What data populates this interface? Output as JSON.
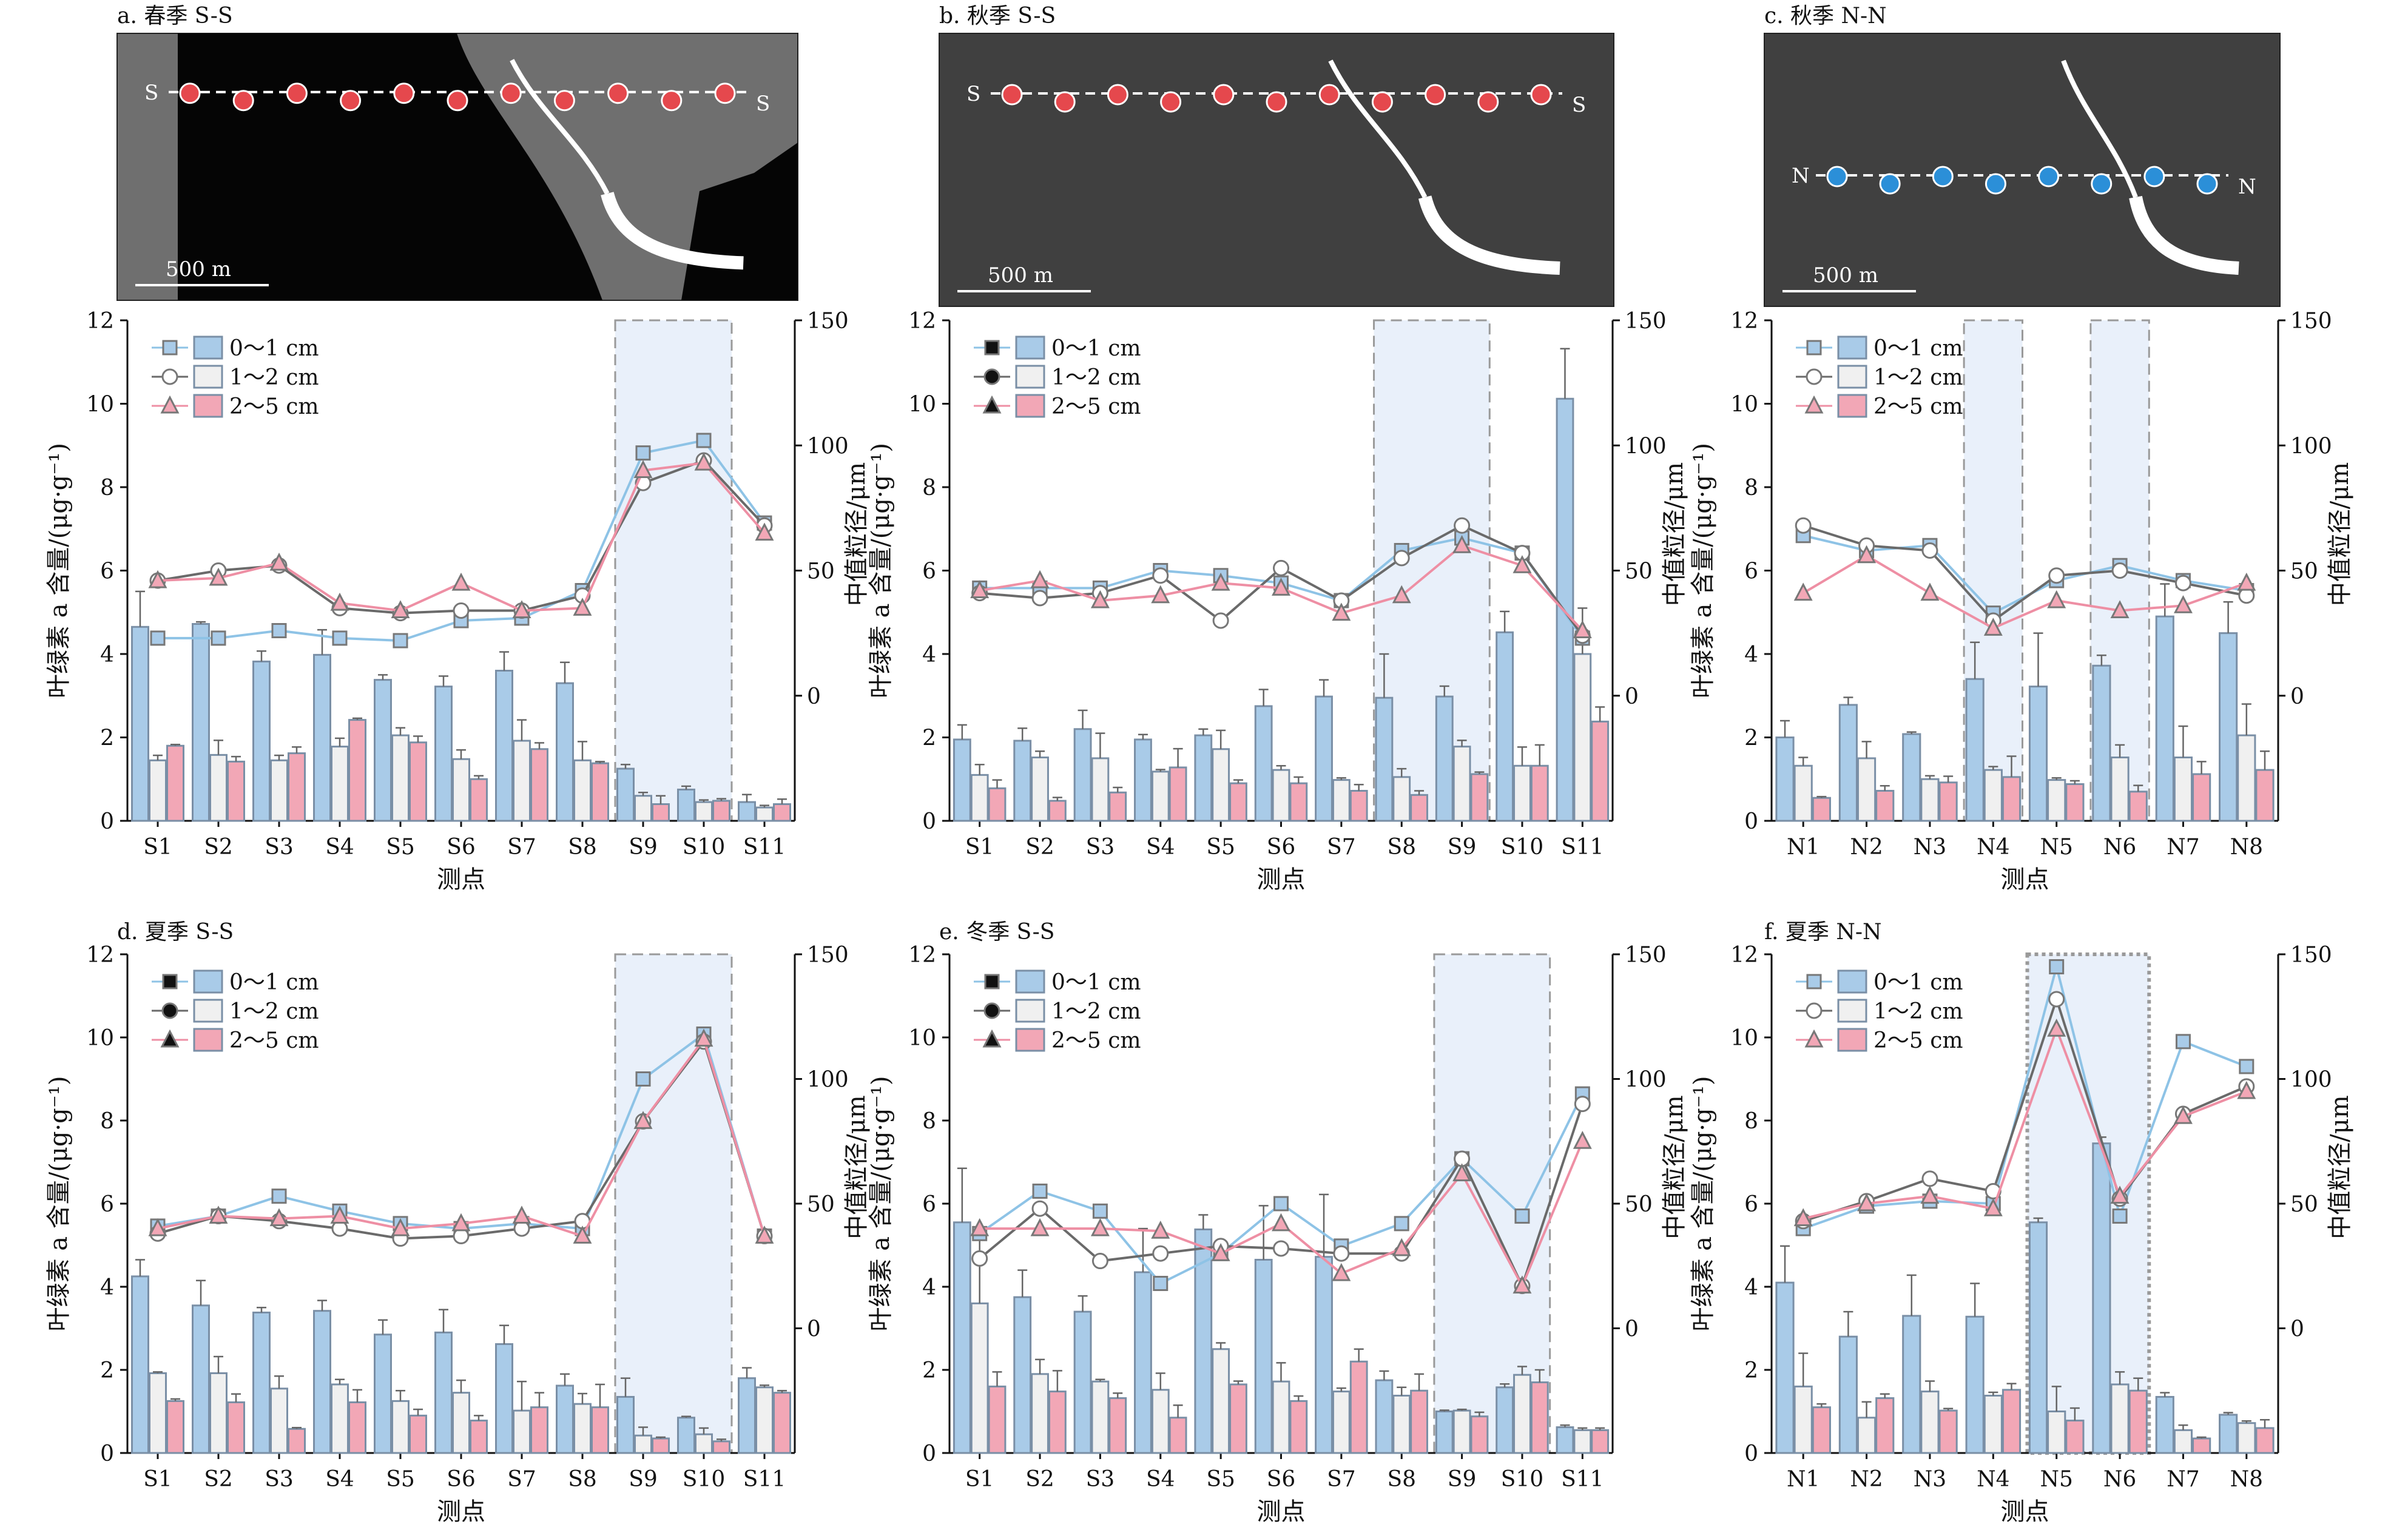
{
  "colors": {
    "bar_0_1": "#a9cbe8",
    "bar_1_2": "#f0f0f0",
    "bar_2_5": "#f2a7b6",
    "bar_stroke": "#7a8fa6",
    "line_0_1": "#8ec3e6",
    "line_1_2": "#6a6a6a",
    "line_2_5": "#ee8fa4",
    "highlight": "#e9f0fa",
    "dot_red": "#e5484d",
    "dot_blue": "#2b8fd8"
  },
  "common": {
    "ylabel_left": "叶绿素 a 含量/(μg·g⁻¹)",
    "ylabel_right": "中值粒径/μm",
    "xlabel": "测点",
    "scale_label": "500 m",
    "legend": [
      "0～1 cm",
      "1～2 cm",
      "2～5 cm"
    ],
    "left_ticks": [
      0,
      2,
      4,
      6,
      8,
      10,
      12
    ],
    "right_ticks": [
      0,
      50,
      100,
      150
    ]
  },
  "chart_data": [
    {
      "type": "bar",
      "title": "a. 春季 S-S",
      "map_labels": [
        "S",
        "S"
      ],
      "map_dot_color": "red",
      "highlight_idx": [
        [
          8,
          9
        ]
      ],
      "categories": [
        "S1",
        "S2",
        "S3",
        "S4",
        "S5",
        "S6",
        "S7",
        "S8",
        "S9",
        "S10",
        "S11"
      ],
      "ylim": [
        0,
        12
      ],
      "y2lim": [
        -50,
        150
      ],
      "series": [
        {
          "name": "0～1 cm",
          "values": [
            4.65,
            4.72,
            3.82,
            3.98,
            3.38,
            3.22,
            3.6,
            3.3,
            1.25,
            0.75,
            0.45
          ],
          "err": [
            0.85,
            0.05,
            0.25,
            0.6,
            0.12,
            0.25,
            0.45,
            0.5,
            0.1,
            0.08,
            0.18
          ]
        },
        {
          "name": "1～2 cm",
          "values": [
            1.45,
            1.58,
            1.45,
            1.78,
            2.05,
            1.48,
            1.92,
            1.45,
            0.6,
            0.45,
            0.32
          ],
          "err": [
            0.12,
            0.35,
            0.12,
            0.2,
            0.18,
            0.22,
            0.5,
            0.45,
            0.08,
            0.05,
            0.05
          ]
        },
        {
          "name": "2～5 cm",
          "values": [
            1.8,
            1.42,
            1.62,
            2.42,
            1.88,
            1.0,
            1.72,
            1.38,
            0.4,
            0.48,
            0.4
          ],
          "err": [
            0.03,
            0.12,
            0.15,
            0.04,
            0.15,
            0.08,
            0.15,
            0.04,
            0.2,
            0.05,
            0.12
          ]
        }
      ],
      "line_series": [
        {
          "name": "0～1 cm",
          "marker": "square",
          "values": [
            23,
            23,
            26,
            23,
            22,
            30,
            31,
            42,
            97,
            102,
            69
          ]
        },
        {
          "name": "1～2 cm",
          "marker": "circle",
          "values": [
            46,
            50,
            52,
            35,
            33,
            34,
            34,
            40,
            85,
            94,
            68
          ]
        },
        {
          "name": "2～5 cm",
          "marker": "triangle",
          "values": [
            46,
            47,
            53,
            37,
            34,
            45,
            34,
            35,
            90,
            93,
            65
          ]
        }
      ]
    },
    {
      "type": "bar",
      "title": "b. 秋季 S-S",
      "map_labels": [
        "S",
        "S"
      ],
      "map_dot_color": "red",
      "highlight_idx": [
        [
          7,
          8
        ]
      ],
      "categories": [
        "S1",
        "S2",
        "S3",
        "S4",
        "S5",
        "S6",
        "S7",
        "S8",
        "S9",
        "S10",
        "S11"
      ],
      "ylim": [
        0,
        12
      ],
      "y2lim": [
        -50,
        150
      ],
      "series": [
        {
          "name": "0～1 cm",
          "values": [
            1.95,
            1.92,
            2.2,
            1.95,
            2.05,
            2.75,
            2.98,
            2.95,
            2.98,
            4.52,
            10.12
          ],
          "err": [
            0.35,
            0.3,
            0.45,
            0.12,
            0.15,
            0.4,
            0.4,
            1.05,
            0.25,
            0.5,
            1.2
          ]
        },
        {
          "name": "1～2 cm",
          "values": [
            1.1,
            1.52,
            1.5,
            1.18,
            1.72,
            1.22,
            0.98,
            1.05,
            1.78,
            1.32,
            4.0
          ],
          "err": [
            0.25,
            0.15,
            0.6,
            0.05,
            0.45,
            0.1,
            0.05,
            0.2,
            0.15,
            0.45,
            1.1
          ]
        },
        {
          "name": "2～5 cm",
          "values": [
            0.78,
            0.48,
            0.68,
            1.28,
            0.9,
            0.9,
            0.72,
            0.62,
            1.12,
            1.32,
            2.38
          ],
          "err": [
            0.2,
            0.08,
            0.12,
            0.45,
            0.08,
            0.15,
            0.15,
            0.1,
            0.05,
            0.5,
            0.35
          ]
        }
      ],
      "line_series": [
        {
          "name": "0～1 cm",
          "marker": "square",
          "values": [
            43,
            43,
            43,
            50,
            48,
            45,
            38,
            58,
            63,
            57,
            23
          ]
        },
        {
          "name": "1～2 cm",
          "marker": "circle",
          "values": [
            41,
            39,
            41,
            48,
            30,
            51,
            38,
            55,
            68,
            57,
            24
          ]
        },
        {
          "name": "2～5 cm",
          "marker": "triangle",
          "values": [
            42,
            46,
            38,
            40,
            45,
            43,
            33,
            40,
            60,
            52,
            26
          ]
        }
      ]
    },
    {
      "type": "bar",
      "title": "c. 秋季 N-N",
      "map_labels": [
        "N",
        "N"
      ],
      "map_dot_color": "blue",
      "highlight_idx": [
        [
          3,
          3
        ],
        [
          5,
          5
        ]
      ],
      "categories": [
        "N1",
        "N2",
        "N3",
        "N4",
        "N5",
        "N6",
        "N7",
        "N8"
      ],
      "ylim": [
        0,
        12
      ],
      "y2lim": [
        -50,
        150
      ],
      "series": [
        {
          "name": "0～1 cm",
          "values": [
            2.0,
            2.78,
            2.08,
            3.4,
            3.22,
            3.72,
            4.9,
            4.5
          ],
          "err": [
            0.4,
            0.18,
            0.05,
            0.88,
            1.28,
            0.25,
            0.78,
            0.75
          ]
        },
        {
          "name": "1～2 cm",
          "values": [
            1.32,
            1.5,
            1.0,
            1.22,
            0.98,
            1.52,
            1.52,
            2.05
          ],
          "err": [
            0.2,
            0.4,
            0.08,
            0.08,
            0.05,
            0.3,
            0.75,
            0.75
          ]
        },
        {
          "name": "2～5 cm",
          "values": [
            0.55,
            0.72,
            0.92,
            1.05,
            0.88,
            0.7,
            1.12,
            1.22
          ],
          "err": [
            0.03,
            0.12,
            0.15,
            0.5,
            0.08,
            0.15,
            0.3,
            0.45
          ]
        }
      ],
      "line_series": [
        {
          "name": "0～1 cm",
          "marker": "square",
          "values": [
            64,
            58,
            60,
            33,
            46,
            52,
            46,
            42
          ]
        },
        {
          "name": "1～2 cm",
          "marker": "circle",
          "values": [
            68,
            60,
            58,
            30,
            48,
            50,
            45,
            40
          ]
        },
        {
          "name": "2～5 cm",
          "marker": "triangle",
          "values": [
            41,
            56,
            41,
            27,
            38,
            34,
            36,
            45
          ]
        }
      ]
    },
    {
      "type": "bar",
      "title": "d. 夏季 S-S",
      "map_labels": [],
      "map_dot_color": "",
      "highlight_idx": [
        [
          8,
          9
        ]
      ],
      "categories": [
        "S1",
        "S2",
        "S3",
        "S4",
        "S5",
        "S6",
        "S7",
        "S8",
        "S9",
        "S10",
        "S11"
      ],
      "ylim": [
        0,
        12
      ],
      "y2lim": [
        -50,
        150
      ],
      "series": [
        {
          "name": "0～1 cm",
          "values": [
            4.25,
            3.55,
            3.38,
            3.42,
            2.85,
            2.9,
            2.62,
            1.62,
            1.35,
            0.85,
            1.8
          ],
          "err": [
            0.4,
            0.6,
            0.12,
            0.25,
            0.35,
            0.55,
            0.45,
            0.28,
            0.45,
            0.03,
            0.25
          ]
        },
        {
          "name": "1～2 cm",
          "values": [
            1.92,
            1.92,
            1.55,
            1.65,
            1.25,
            1.45,
            1.02,
            1.18,
            0.42,
            0.45,
            1.58
          ],
          "err": [
            0.03,
            0.4,
            0.3,
            0.12,
            0.25,
            0.3,
            0.7,
            0.25,
            0.2,
            0.15,
            0.05
          ]
        },
        {
          "name": "2～5 cm",
          "values": [
            1.25,
            1.22,
            0.58,
            1.22,
            0.9,
            0.78,
            1.1,
            1.1,
            0.35,
            0.28,
            1.45
          ],
          "err": [
            0.05,
            0.2,
            0.03,
            0.3,
            0.15,
            0.12,
            0.35,
            0.55,
            0.03,
            0.05,
            0.05
          ]
        }
      ],
      "line_series": [
        {
          "name": "0～1 cm",
          "marker": "square",
          "values": [
            41,
            45,
            53,
            47,
            42,
            40,
            42,
            40,
            100,
            118,
            37
          ]
        },
        {
          "name": "1～2 cm",
          "marker": "circle",
          "values": [
            38,
            45,
            43,
            40,
            36,
            37,
            40,
            43,
            83,
            115,
            37
          ]
        },
        {
          "name": "2～5 cm",
          "marker": "triangle",
          "values": [
            40,
            45,
            44,
            45,
            40,
            42,
            45,
            37,
            83,
            116,
            37
          ]
        }
      ]
    },
    {
      "type": "bar",
      "title": "e. 冬季 S-S",
      "map_labels": [],
      "map_dot_color": "",
      "highlight_idx": [
        [
          8,
          9
        ]
      ],
      "categories": [
        "S1",
        "S2",
        "S3",
        "S4",
        "S5",
        "S6",
        "S7",
        "S8",
        "S9",
        "S10",
        "S11"
      ],
      "ylim": [
        0,
        12
      ],
      "y2lim": [
        -50,
        150
      ],
      "series": [
        {
          "name": "0～1 cm",
          "values": [
            5.55,
            3.75,
            3.4,
            4.35,
            5.38,
            4.65,
            4.72,
            1.75,
            1.0,
            1.58,
            0.62
          ],
          "err": [
            1.3,
            0.65,
            0.38,
            1.05,
            0.35,
            1.3,
            1.5,
            0.22,
            0.03,
            0.08,
            0.05
          ]
        },
        {
          "name": "1～2 cm",
          "values": [
            3.6,
            1.9,
            1.72,
            1.52,
            2.5,
            1.72,
            1.48,
            1.38,
            1.02,
            1.88,
            0.55
          ],
          "err": [
            1.8,
            0.35,
            0.05,
            0.4,
            0.15,
            0.45,
            0.08,
            0.2,
            0.03,
            0.2,
            0.05
          ]
        },
        {
          "name": "2～5 cm",
          "values": [
            1.6,
            1.48,
            1.32,
            0.85,
            1.65,
            1.25,
            2.2,
            1.5,
            0.88,
            1.7,
            0.55
          ],
          "err": [
            0.35,
            0.5,
            0.12,
            0.3,
            0.08,
            0.12,
            0.3,
            0.4,
            0.1,
            0.3,
            0.05
          ]
        }
      ],
      "line_series": [
        {
          "name": "0～1 cm",
          "marker": "square",
          "values": [
            38,
            55,
            47,
            18,
            30,
            50,
            33,
            42,
            68,
            45,
            94
          ]
        },
        {
          "name": "1～2 cm",
          "marker": "circle",
          "values": [
            28,
            48,
            27,
            30,
            33,
            32,
            30,
            30,
            68,
            17,
            90
          ]
        },
        {
          "name": "2～5 cm",
          "marker": "triangle",
          "values": [
            40,
            40,
            40,
            39,
            30,
            42,
            22,
            32,
            62,
            17,
            75
          ]
        }
      ]
    },
    {
      "type": "bar",
      "title": "f. 夏季 N-N",
      "map_labels": [],
      "map_dot_color": "",
      "highlight_idx": [
        [
          4,
          5
        ]
      ],
      "highlight_dotted": true,
      "categories": [
        "N1",
        "N2",
        "N3",
        "N4",
        "N5",
        "N6",
        "N7",
        "N8"
      ],
      "ylim": [
        0,
        12
      ],
      "y2lim": [
        -50,
        150
      ],
      "series": [
        {
          "name": "0～1 cm",
          "values": [
            4.1,
            2.8,
            3.3,
            3.28,
            5.55,
            7.45,
            1.35,
            0.92
          ],
          "err": [
            0.88,
            0.6,
            0.98,
            0.8,
            0.1,
            0.15,
            0.1,
            0.05
          ]
        },
        {
          "name": "1～2 cm",
          "values": [
            1.6,
            0.85,
            1.48,
            1.38,
            1.0,
            1.65,
            0.55,
            0.72
          ],
          "err": [
            0.8,
            0.38,
            0.25,
            0.08,
            0.6,
            0.3,
            0.12,
            0.05
          ]
        },
        {
          "name": "2～5 cm",
          "values": [
            1.1,
            1.32,
            1.02,
            1.52,
            0.78,
            1.5,
            0.35,
            0.6
          ],
          "err": [
            0.08,
            0.1,
            0.05,
            0.15,
            0.3,
            0.3,
            0.03,
            0.2
          ]
        }
      ],
      "line_series": [
        {
          "name": "0～1 cm",
          "marker": "square",
          "values": [
            40,
            49,
            51,
            50,
            145,
            45,
            115,
            105
          ]
        },
        {
          "name": "1～2 cm",
          "marker": "circle",
          "values": [
            43,
            51,
            60,
            55,
            132,
            52,
            86,
            97
          ]
        },
        {
          "name": "2～5 cm",
          "marker": "triangle",
          "values": [
            44,
            50,
            53,
            48,
            120,
            53,
            85,
            95
          ]
        }
      ]
    }
  ]
}
